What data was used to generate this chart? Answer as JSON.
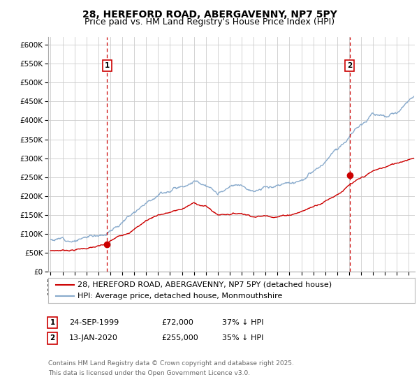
{
  "title": "28, HEREFORD ROAD, ABERGAVENNY, NP7 5PY",
  "subtitle": "Price paid vs. HM Land Registry's House Price Index (HPI)",
  "ylim": [
    0,
    620000
  ],
  "yticks": [
    0,
    50000,
    100000,
    150000,
    200000,
    250000,
    300000,
    350000,
    400000,
    450000,
    500000,
    550000,
    600000
  ],
  "xlim_start": 1994.8,
  "xlim_end": 2025.5,
  "sale1_year": 1999.733,
  "sale1_price": 72000,
  "sale1_label": "1",
  "sale1_date": "24-SEP-1999",
  "sale1_price_str": "£72,000",
  "sale1_pct": "37% ↓ HPI",
  "sale2_year": 2020.04,
  "sale2_price": 255000,
  "sale2_label": "2",
  "sale2_date": "13-JAN-2020",
  "sale2_price_str": "£255,000",
  "sale2_pct": "35% ↓ HPI",
  "line_color_property": "#cc0000",
  "line_color_hpi": "#88aacc",
  "vline_color": "#cc0000",
  "grid_color": "#cccccc",
  "background_color": "#ffffff",
  "legend_label_property": "28, HEREFORD ROAD, ABERGAVENNY, NP7 5PY (detached house)",
  "legend_label_hpi": "HPI: Average price, detached house, Monmouthshire",
  "footnote1": "Contains HM Land Registry data © Crown copyright and database right 2025.",
  "footnote2": "This data is licensed under the Open Government Licence v3.0.",
  "title_fontsize": 10,
  "subtitle_fontsize": 9,
  "tick_fontsize": 7.5,
  "legend_fontsize": 8,
  "table_fontsize": 8,
  "footnote_fontsize": 6.5
}
